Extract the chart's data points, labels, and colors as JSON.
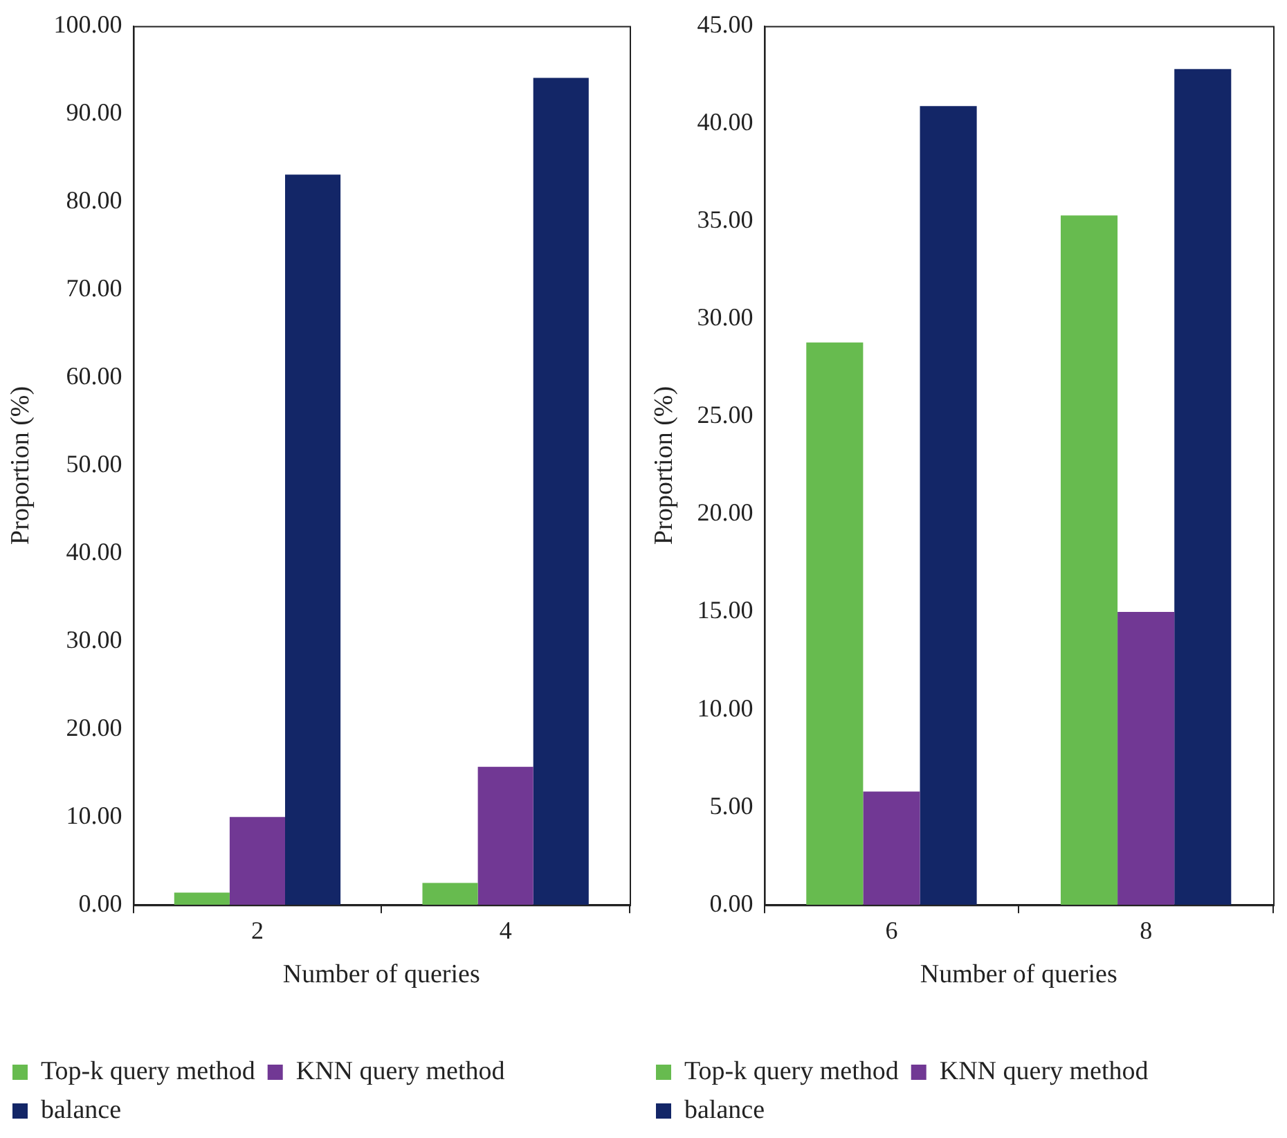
{
  "chart_data": [
    {
      "type": "bar",
      "xlabel": "Number of queries",
      "ylabel": "Proportion (%)",
      "categories": [
        "2",
        "4"
      ],
      "series": [
        {
          "name": "Top-k query method",
          "color": "#67bb4f",
          "values": [
            1.4,
            2.5
          ]
        },
        {
          "name": "KNN query method",
          "color": "#713894",
          "values": [
            10.0,
            15.7
          ]
        },
        {
          "name": "balance",
          "color": "#132667",
          "values": [
            83.1,
            94.1
          ]
        }
      ],
      "ylim": [
        0,
        100
      ],
      "yticks": [
        {
          "value": 0,
          "label": "0.00"
        },
        {
          "value": 10,
          "label": "10.00"
        },
        {
          "value": 20,
          "label": "20.00"
        },
        {
          "value": 30,
          "label": "30.00"
        },
        {
          "value": 40,
          "label": "40.00"
        },
        {
          "value": 50,
          "label": "50.00"
        },
        {
          "value": 60,
          "label": "60.00"
        },
        {
          "value": 70,
          "label": "70.00"
        },
        {
          "value": 80,
          "label": "80.00"
        },
        {
          "value": 90,
          "label": "90.00"
        },
        {
          "value": 100,
          "label": "100.00"
        }
      ],
      "grid": false,
      "legend": "bottom"
    },
    {
      "type": "bar",
      "xlabel": "Number of queries",
      "ylabel": "Proportion (%)",
      "categories": [
        "6",
        "8"
      ],
      "series": [
        {
          "name": "Top-k query method",
          "color": "#67bb4f",
          "values": [
            28.8,
            35.3
          ]
        },
        {
          "name": "KNN query method",
          "color": "#713894",
          "values": [
            5.8,
            15.0
          ]
        },
        {
          "name": "balance",
          "color": "#132667",
          "values": [
            40.9,
            42.8
          ]
        }
      ],
      "ylim": [
        0,
        45
      ],
      "yticks": [
        {
          "value": 0,
          "label": "0.00"
        },
        {
          "value": 5,
          "label": "5.00"
        },
        {
          "value": 10,
          "label": "10.00"
        },
        {
          "value": 15,
          "label": "15.00"
        },
        {
          "value": 20,
          "label": "20.00"
        },
        {
          "value": 25,
          "label": "25.00"
        },
        {
          "value": 30,
          "label": "30.00"
        },
        {
          "value": 35,
          "label": "35.00"
        },
        {
          "value": 40,
          "label": "40.00"
        },
        {
          "value": 45,
          "label": "45.00"
        }
      ],
      "grid": false,
      "legend": "bottom"
    }
  ]
}
